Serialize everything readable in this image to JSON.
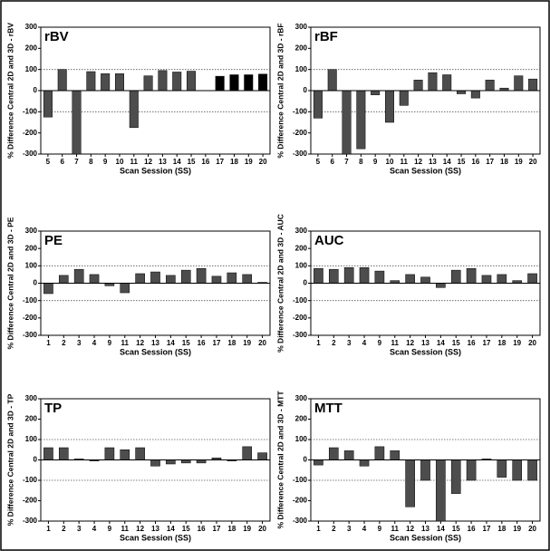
{
  "chart_data": [
    {
      "type": "bar",
      "title": "rBV",
      "ylabel": "% Difference Central 2D and 3D - rBV",
      "xlabel": "Scan Session (SS)",
      "categories": [
        "5",
        "6",
        "7",
        "8",
        "9",
        "10",
        "11",
        "12",
        "13",
        "14",
        "15",
        "16",
        "17",
        "18",
        "19",
        "20"
      ],
      "values": [
        -125,
        100,
        -300,
        90,
        80,
        80,
        -175,
        70,
        95,
        88,
        92,
        0,
        68,
        75,
        75,
        78
      ],
      "colors": [
        "#4d4d4d",
        "#4d4d4d",
        "#4d4d4d",
        "#4d4d4d",
        "#4d4d4d",
        "#4d4d4d",
        "#4d4d4d",
        "#4d4d4d",
        "#4d4d4d",
        "#4d4d4d",
        "#4d4d4d",
        "#4d4d4d",
        "#000000",
        "#000000",
        "#000000",
        "#000000"
      ],
      "ylim": [
        -300,
        300
      ],
      "yticks": [
        -300,
        -200,
        -100,
        0,
        100,
        200,
        300
      ],
      "hlines": [
        -100,
        100
      ]
    },
    {
      "type": "bar",
      "title": "rBF",
      "ylabel": "% Difference Central 2D and 3D - rBF",
      "xlabel": "Scan Session (SS)",
      "categories": [
        "5",
        "6",
        "7",
        "8",
        "9",
        "10",
        "11",
        "12",
        "13",
        "14",
        "15",
        "16",
        "17",
        "18",
        "19",
        "20"
      ],
      "values": [
        -130,
        100,
        -300,
        -275,
        -20,
        -150,
        -70,
        50,
        85,
        75,
        -15,
        -35,
        50,
        12,
        70,
        55
      ],
      "color": "#4d4d4d",
      "ylim": [
        -300,
        300
      ],
      "yticks": [
        -300,
        -200,
        -100,
        0,
        100,
        200,
        300
      ],
      "hlines": [
        -100,
        100
      ]
    },
    {
      "type": "bar",
      "title": "PE",
      "ylabel": "% Difference Central 2D and 3D - PE",
      "xlabel": "Scan Session (SS)",
      "categories": [
        "1",
        "2",
        "3",
        "4",
        "9",
        "11",
        "12",
        "13",
        "14",
        "15",
        "16",
        "17",
        "18",
        "19",
        "20"
      ],
      "values": [
        -60,
        45,
        80,
        50,
        -15,
        -55,
        55,
        65,
        45,
        75,
        85,
        40,
        60,
        50,
        5
      ],
      "color": "#4d4d4d",
      "ylim": [
        -300,
        300
      ],
      "yticks": [
        -300,
        -200,
        -100,
        0,
        100,
        200,
        300
      ],
      "hlines": [
        -100,
        100
      ]
    },
    {
      "type": "bar",
      "title": "AUC",
      "ylabel": "% Difference Central 2D and 3D - AUC",
      "xlabel": "Scan Session (SS)",
      "categories": [
        "1",
        "2",
        "3",
        "4",
        "9",
        "11",
        "12",
        "13",
        "14",
        "15",
        "16",
        "17",
        "18",
        "19",
        "20"
      ],
      "values": [
        85,
        80,
        90,
        90,
        70,
        15,
        50,
        35,
        -25,
        75,
        85,
        45,
        50,
        15,
        55
      ],
      "color": "#4d4d4d",
      "ylim": [
        -300,
        300
      ],
      "yticks": [
        -300,
        -200,
        -100,
        0,
        100,
        200,
        300
      ],
      "hlines": [
        -100,
        100
      ]
    },
    {
      "type": "bar",
      "title": "TP",
      "ylabel": "% Difference Central 2D and 3D - TP",
      "xlabel": "Scan Session (SS)",
      "categories": [
        "1",
        "2",
        "3",
        "4",
        "9",
        "11",
        "12",
        "13",
        "14",
        "15",
        "16",
        "17",
        "18",
        "19",
        "20"
      ],
      "values": [
        60,
        60,
        5,
        -5,
        60,
        50,
        60,
        -30,
        -20,
        -15,
        -15,
        10,
        -5,
        65,
        35
      ],
      "color": "#4d4d4d",
      "ylim": [
        -300,
        300
      ],
      "yticks": [
        -300,
        -200,
        -100,
        0,
        100,
        200,
        300
      ],
      "hlines": [
        -100,
        100
      ]
    },
    {
      "type": "bar",
      "title": "MTT",
      "ylabel": "% Difference Central 2D and 3D - MTT",
      "xlabel": "Scan Session (SS)",
      "categories": [
        "1",
        "2",
        "3",
        "4",
        "9",
        "11",
        "12",
        "13",
        "14",
        "15",
        "16",
        "17",
        "18",
        "19",
        "20"
      ],
      "values": [
        -25,
        60,
        45,
        -30,
        65,
        45,
        -230,
        -100,
        -300,
        -165,
        -100,
        5,
        -85,
        -100,
        -100
      ],
      "color": "#4d4d4d",
      "ylim": [
        -300,
        300
      ],
      "yticks": [
        -300,
        -200,
        -100,
        0,
        100,
        200,
        300
      ],
      "hlines": [
        -100,
        100
      ]
    }
  ]
}
